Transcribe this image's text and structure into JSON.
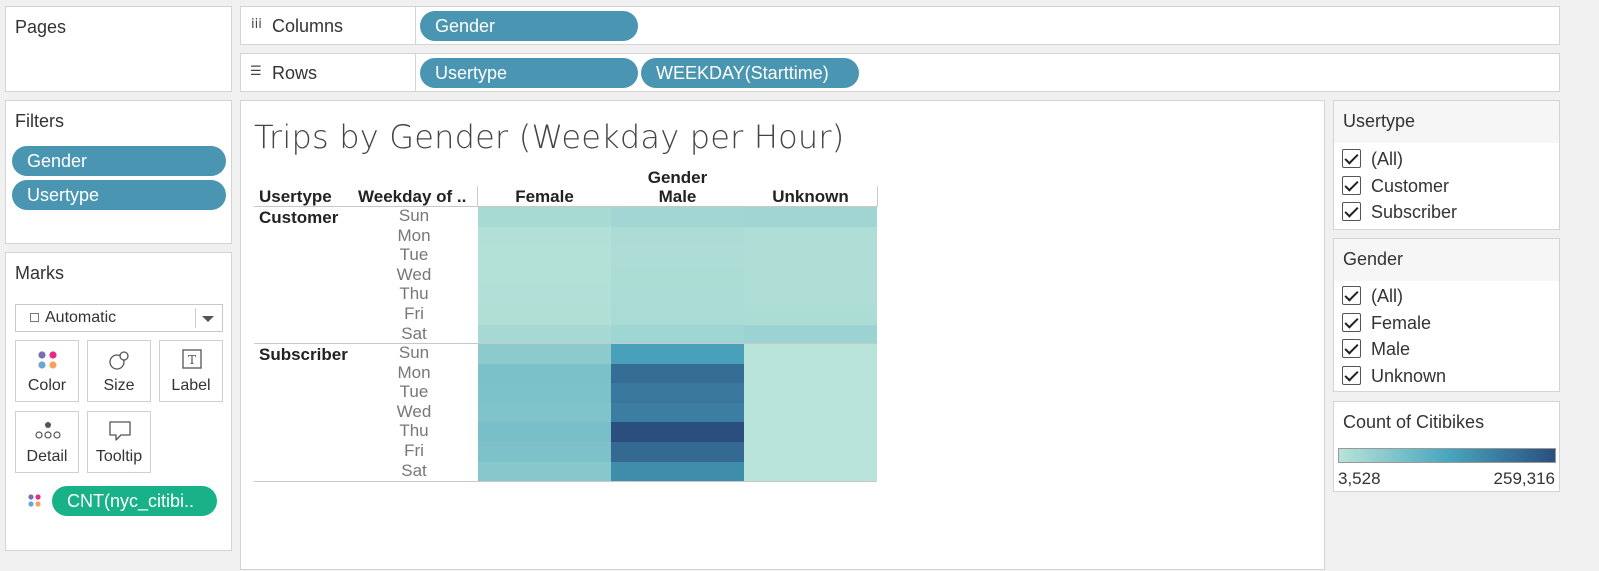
{
  "pages_shelf": {
    "label": "Pages"
  },
  "columns_shelf": {
    "label": "Columns",
    "icon": "columns-icon",
    "pills": [
      "Gender"
    ]
  },
  "rows_shelf": {
    "label": "Rows",
    "icon": "rows-icon",
    "pills": [
      "Usertype",
      "WEEKDAY(Starttime)"
    ]
  },
  "filters_shelf": {
    "label": "Filters",
    "pills": [
      "Gender",
      "Usertype"
    ]
  },
  "marks": {
    "label": "Marks",
    "mark_type": "Automatic",
    "buttons": {
      "color": "Color",
      "size": "Size",
      "label": "Label",
      "detail": "Detail",
      "tooltip": "Tooltip"
    },
    "field_pill": "CNT(nyc_citibi.."
  },
  "view": {
    "title": "Trips by Gender (Weekday per Hour)",
    "headers": {
      "usertype": "Usertype",
      "weekday": "Weekday of ..",
      "gender": "Gender",
      "female": "Female",
      "male": "Male",
      "unknown": "Unknown"
    },
    "groups": [
      "Customer",
      "Subscriber"
    ],
    "days": [
      "Sun",
      "Mon",
      "Tue",
      "Wed",
      "Thu",
      "Fri",
      "Sat"
    ]
  },
  "usertype_filter": {
    "title": "Usertype",
    "items": [
      "(All)",
      "Customer",
      "Subscriber"
    ]
  },
  "gender_filter": {
    "title": "Gender",
    "items": [
      "(All)",
      "Female",
      "Male",
      "Unknown"
    ]
  },
  "legend": {
    "title": "Count of Citibikes",
    "min_label": "3,528",
    "max_label": "259,316"
  },
  "chart_data": {
    "type": "heatmap",
    "title": "Trips by Gender (Weekday per Hour)",
    "x_label": "Gender",
    "x_categories": [
      "Female",
      "Male",
      "Unknown"
    ],
    "y_groups": [
      "Customer",
      "Subscriber"
    ],
    "y_categories": [
      "Sun",
      "Mon",
      "Tue",
      "Wed",
      "Thu",
      "Fri",
      "Sat"
    ],
    "value_range": [
      3528,
      259316
    ],
    "colors": {
      "low": "#b8e3d8",
      "mid": "#4aa6bf",
      "high": "#2a4f7e"
    },
    "values": {
      "Customer": [
        [
          22000,
          30000,
          32000
        ],
        [
          10000,
          18000,
          15000
        ],
        [
          9000,
          16000,
          13000
        ],
        [
          9500,
          17000,
          14000
        ],
        [
          11000,
          19000,
          15000
        ],
        [
          12000,
          20000,
          17000
        ],
        [
          25000,
          33000,
          38000
        ]
      ],
      "Subscriber": [
        [
          55000,
          140000,
          4000
        ],
        [
          75000,
          215000,
          3600
        ],
        [
          73000,
          200000,
          3600
        ],
        [
          70000,
          190000,
          3600
        ],
        [
          78000,
          259316,
          3528
        ],
        [
          72000,
          220000,
          3600
        ],
        [
          60000,
          170000,
          3900
        ]
      ]
    }
  }
}
